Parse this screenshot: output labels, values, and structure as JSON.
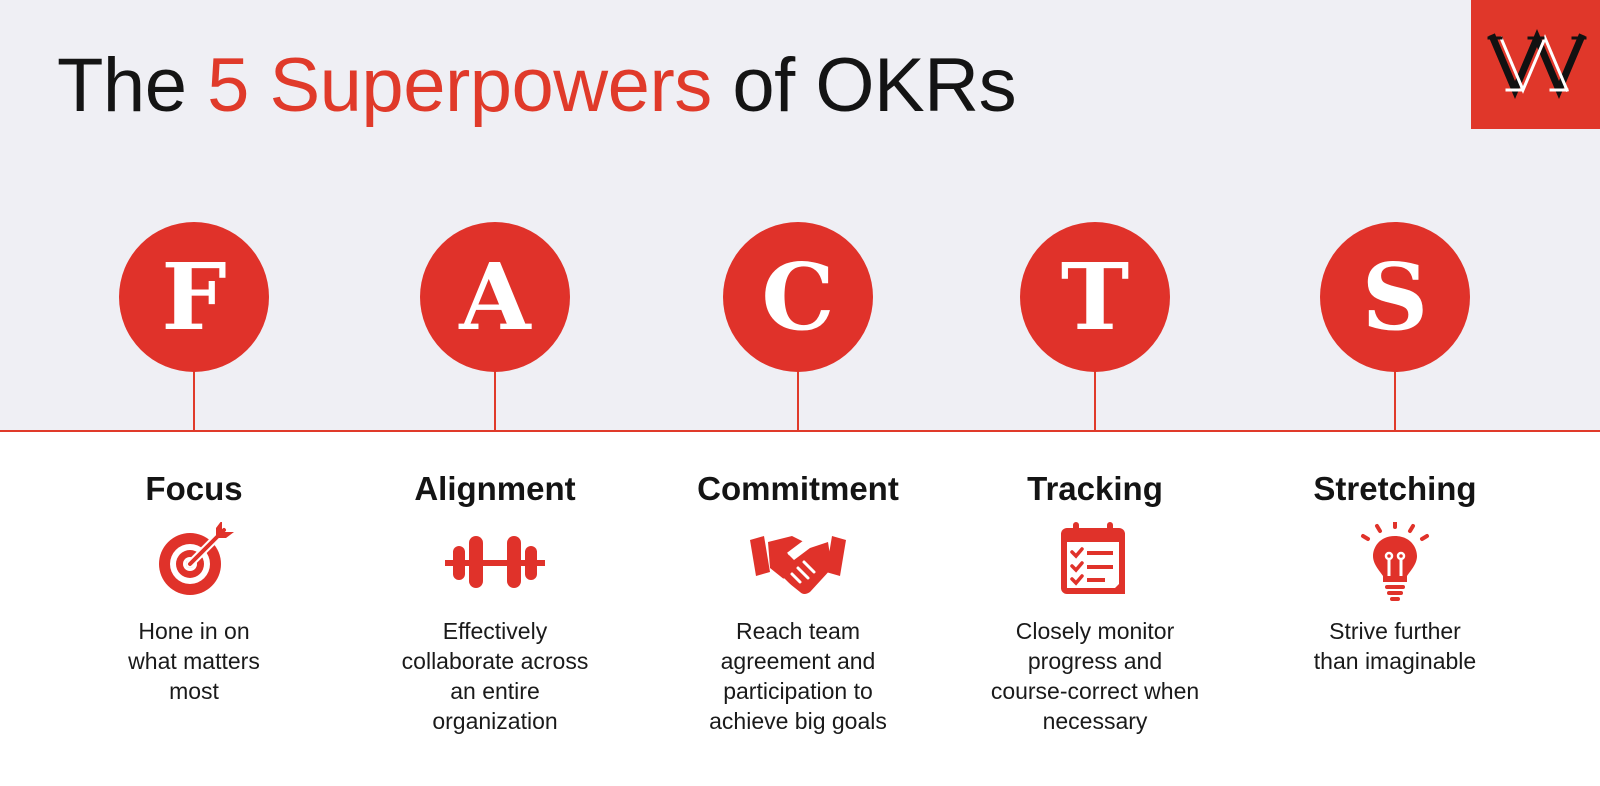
{
  "title": {
    "pre": "The ",
    "accent": "5 Superpowers",
    "post": " of OKRs"
  },
  "colors": {
    "accent": "#e0322a",
    "background": "#efeff4",
    "text": "#141414"
  },
  "logo": {
    "icon": "wm-monogram-icon"
  },
  "pillars": [
    {
      "letter": "F",
      "heading": "Focus",
      "icon": "target-icon",
      "lines": [
        "Hone in on",
        "what matters",
        "most"
      ]
    },
    {
      "letter": "A",
      "heading": "Alignment",
      "icon": "dumbbell-icon",
      "lines": [
        "Effectively",
        "collaborate across",
        "an entire",
        "organization"
      ]
    },
    {
      "letter": "C",
      "heading": "Commitment",
      "icon": "handshake-icon",
      "lines": [
        "Reach team",
        "agreement and",
        "participation to",
        "achieve big goals"
      ]
    },
    {
      "letter": "T",
      "heading": "Tracking",
      "icon": "calendar-checklist-icon",
      "lines": [
        "Closely monitor",
        "progress and",
        "course-correct when",
        "necessary"
      ]
    },
    {
      "letter": "S",
      "heading": "Stretching",
      "icon": "lightbulb-icon",
      "lines": [
        "Strive further",
        "than imaginable"
      ]
    }
  ]
}
